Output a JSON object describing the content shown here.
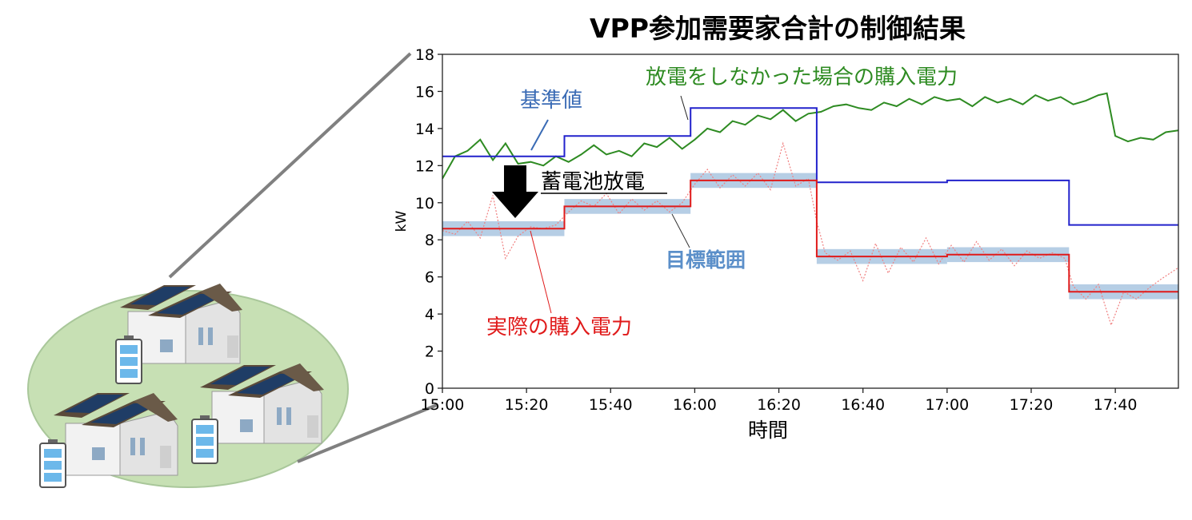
{
  "colors": {
    "baseline": "#2222cc",
    "no_discharge": "#2e8b22",
    "actual": "#e01a1a",
    "raw_actual": "#f08080",
    "target_band": "#a9c6e0",
    "ground": "#c7e0b4",
    "battery": "#6cb8ea",
    "baseline_label": "#3a6bb5",
    "target_label": "#5b8fc9"
  },
  "illustration": {
    "houses_icon": "houses-with-solar-panels",
    "batteries_icon": "battery-icon"
  },
  "chart_data": {
    "type": "line",
    "title": "VPP参加需要家合計の制御結果",
    "xlabel": "時間",
    "ylabel": "kW",
    "xlim": [
      "15:00",
      "17:55"
    ],
    "ylim": [
      0,
      18
    ],
    "x_ticks": [
      "15:00",
      "15:20",
      "15:40",
      "16:00",
      "16:20",
      "16:40",
      "17:00",
      "17:20",
      "17:40"
    ],
    "y_ticks": [
      0,
      2,
      4,
      6,
      8,
      10,
      12,
      14,
      16,
      18
    ],
    "grid": false,
    "series": [
      {
        "name": "基準値",
        "key": "baseline",
        "style": "step",
        "points": [
          [
            "15:00",
            12.5
          ],
          [
            "15:29",
            12.5
          ],
          [
            "15:29",
            13.6
          ],
          [
            "15:59",
            13.6
          ],
          [
            "15:59",
            15.1
          ],
          [
            "16:29",
            15.1
          ],
          [
            "16:29",
            11.1
          ],
          [
            "17:00",
            11.1
          ],
          [
            "17:00",
            11.2
          ],
          [
            "17:29",
            11.2
          ],
          [
            "17:29",
            8.8
          ],
          [
            "17:55",
            8.8
          ]
        ]
      },
      {
        "name": "放電をしなかった場合の購入電力",
        "key": "no_discharge",
        "style": "line",
        "points": [
          [
            "15:00",
            11.3
          ],
          [
            "15:03",
            12.5
          ],
          [
            "15:06",
            12.8
          ],
          [
            "15:09",
            13.4
          ],
          [
            "15:12",
            12.3
          ],
          [
            "15:15",
            13.2
          ],
          [
            "15:18",
            12.1
          ],
          [
            "15:21",
            12.2
          ],
          [
            "15:24",
            12.0
          ],
          [
            "15:27",
            12.5
          ],
          [
            "15:30",
            12.2
          ],
          [
            "15:33",
            12.6
          ],
          [
            "15:36",
            13.1
          ],
          [
            "15:39",
            12.6
          ],
          [
            "15:42",
            12.8
          ],
          [
            "15:45",
            12.5
          ],
          [
            "15:48",
            13.2
          ],
          [
            "15:51",
            13.0
          ],
          [
            "15:54",
            13.5
          ],
          [
            "15:57",
            12.9
          ],
          [
            "16:00",
            13.4
          ],
          [
            "16:03",
            14.0
          ],
          [
            "16:06",
            13.8
          ],
          [
            "16:09",
            14.4
          ],
          [
            "16:12",
            14.2
          ],
          [
            "16:15",
            14.7
          ],
          [
            "16:18",
            14.5
          ],
          [
            "16:21",
            15.0
          ],
          [
            "16:24",
            14.4
          ],
          [
            "16:27",
            14.8
          ],
          [
            "16:30",
            14.9
          ],
          [
            "16:33",
            15.2
          ],
          [
            "16:36",
            15.3
          ],
          [
            "16:39",
            15.1
          ],
          [
            "16:42",
            15.0
          ],
          [
            "16:45",
            15.4
          ],
          [
            "16:48",
            15.2
          ],
          [
            "16:51",
            15.6
          ],
          [
            "16:54",
            15.3
          ],
          [
            "16:57",
            15.7
          ],
          [
            "17:00",
            15.5
          ],
          [
            "17:03",
            15.6
          ],
          [
            "17:06",
            15.2
          ],
          [
            "17:09",
            15.7
          ],
          [
            "17:12",
            15.4
          ],
          [
            "17:15",
            15.6
          ],
          [
            "17:18",
            15.3
          ],
          [
            "17:21",
            15.8
          ],
          [
            "17:24",
            15.5
          ],
          [
            "17:27",
            15.7
          ],
          [
            "17:30",
            15.3
          ],
          [
            "17:33",
            15.5
          ],
          [
            "17:36",
            15.8
          ],
          [
            "17:38",
            15.9
          ],
          [
            "17:40",
            13.6
          ],
          [
            "17:43",
            13.3
          ],
          [
            "17:46",
            13.5
          ],
          [
            "17:49",
            13.4
          ],
          [
            "17:52",
            13.8
          ],
          [
            "17:55",
            13.9
          ]
        ]
      },
      {
        "name": "実際の購入電力",
        "key": "actual",
        "style": "step",
        "points": [
          [
            "15:00",
            8.6
          ],
          [
            "15:29",
            8.6
          ],
          [
            "15:29",
            9.8
          ],
          [
            "15:59",
            9.8
          ],
          [
            "15:59",
            11.2
          ],
          [
            "16:29",
            11.2
          ],
          [
            "16:29",
            7.1
          ],
          [
            "17:00",
            7.1
          ],
          [
            "17:00",
            7.2
          ],
          [
            "17:29",
            7.2
          ],
          [
            "17:29",
            5.2
          ],
          [
            "17:55",
            5.2
          ]
        ]
      },
      {
        "name": "目標範囲",
        "key": "target_band",
        "style": "band",
        "segments": [
          [
            "15:00",
            "15:29",
            8.6
          ],
          [
            "15:29",
            "15:59",
            9.8
          ],
          [
            "15:59",
            "16:29",
            11.2
          ],
          [
            "16:29",
            "17:00",
            7.1
          ],
          [
            "17:00",
            "17:29",
            7.2
          ],
          [
            "17:29",
            "17:55",
            5.2
          ]
        ],
        "half_width": 0.4
      },
      {
        "key": "raw_actual",
        "style": "dotted",
        "points": [
          [
            "15:00",
            8.5
          ],
          [
            "15:03",
            8.3
          ],
          [
            "15:06",
            9.0
          ],
          [
            "15:09",
            8.1
          ],
          [
            "15:12",
            10.4
          ],
          [
            "15:15",
            7.0
          ],
          [
            "15:18",
            8.2
          ],
          [
            "15:21",
            8.7
          ],
          [
            "15:24",
            8.6
          ],
          [
            "15:27",
            8.8
          ],
          [
            "15:30",
            9.5
          ],
          [
            "15:33",
            10.1
          ],
          [
            "15:36",
            9.8
          ],
          [
            "15:39",
            10.5
          ],
          [
            "15:42",
            9.4
          ],
          [
            "15:45",
            10.2
          ],
          [
            "15:48",
            9.6
          ],
          [
            "15:51",
            10.1
          ],
          [
            "15:54",
            9.5
          ],
          [
            "15:57",
            10.0
          ],
          [
            "16:00",
            11.0
          ],
          [
            "16:03",
            11.8
          ],
          [
            "16:06",
            10.8
          ],
          [
            "16:09",
            11.5
          ],
          [
            "16:12",
            10.9
          ],
          [
            "16:15",
            11.6
          ],
          [
            "16:18",
            10.7
          ],
          [
            "16:21",
            13.2
          ],
          [
            "16:24",
            10.9
          ],
          [
            "16:27",
            11.3
          ],
          [
            "16:29",
            9.0
          ],
          [
            "16:31",
            7.3
          ],
          [
            "16:34",
            6.9
          ],
          [
            "16:37",
            7.4
          ],
          [
            "16:40",
            5.8
          ],
          [
            "16:43",
            7.8
          ],
          [
            "16:46",
            6.2
          ],
          [
            "16:49",
            7.6
          ],
          [
            "16:52",
            6.8
          ],
          [
            "16:55",
            8.1
          ],
          [
            "16:58",
            6.7
          ],
          [
            "17:01",
            7.7
          ],
          [
            "17:04",
            6.8
          ],
          [
            "17:07",
            7.9
          ],
          [
            "17:10",
            6.9
          ],
          [
            "17:13",
            7.5
          ],
          [
            "17:16",
            6.6
          ],
          [
            "17:19",
            7.4
          ],
          [
            "17:22",
            7.0
          ],
          [
            "17:25",
            7.3
          ],
          [
            "17:28",
            7.0
          ],
          [
            "17:30",
            5.5
          ],
          [
            "17:33",
            4.8
          ],
          [
            "17:36",
            5.6
          ],
          [
            "17:39",
            3.4
          ],
          [
            "17:42",
            5.2
          ],
          [
            "17:45",
            4.8
          ],
          [
            "17:48",
            5.4
          ],
          [
            "17:51",
            5.9
          ],
          [
            "17:55",
            6.5
          ]
        ]
      }
    ],
    "annotations": {
      "baseline_label": "基準値",
      "no_discharge_label": "放電をしなかった場合の購入電力",
      "discharge_label": "蓄電池放電",
      "target_label": "目標範囲",
      "actual_label": "実際の購入電力"
    }
  }
}
